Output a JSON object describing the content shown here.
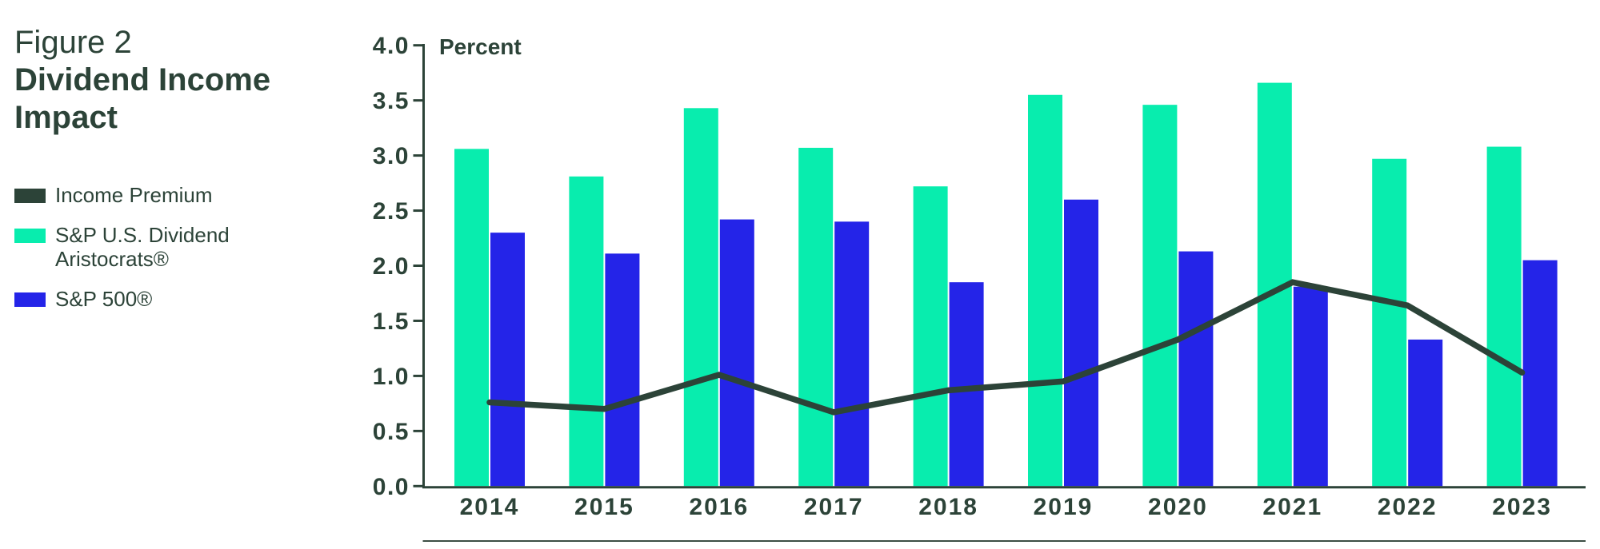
{
  "figure": {
    "label": "Figure 2",
    "title": "Dividend Income Impact"
  },
  "legend": [
    {
      "name": "Income Premium",
      "type": "line",
      "color": "#2C4338"
    },
    {
      "name": "S&P U.S. Dividend Aristocrats®",
      "type": "bar",
      "color": "#08EDAE"
    },
    {
      "name": "S&P 500®",
      "type": "bar",
      "color": "#2424E8"
    }
  ],
  "colors": {
    "text_dark": "#2C4338",
    "mint": "#08EDAE",
    "blue": "#2424E8",
    "line_dark": "#2C4338",
    "separator": "#3C4E44"
  },
  "chart_data": {
    "type": "bar",
    "title": "Dividend Income Impact",
    "ylabel": "Percent",
    "xlabel": "",
    "ylim": [
      0,
      4
    ],
    "ytick_step": 0.5,
    "grid": false,
    "legend_position": "left",
    "categories": [
      "2014",
      "2015",
      "2016",
      "2017",
      "2018",
      "2019",
      "2020",
      "2021",
      "2022",
      "2023"
    ],
    "series": [
      {
        "name": "S&P U.S. Dividend Aristocrats®",
        "type": "bar",
        "color": "#08EDAE",
        "values": [
          3.06,
          2.81,
          3.43,
          3.07,
          2.72,
          3.55,
          3.46,
          3.66,
          2.97,
          3.08
        ]
      },
      {
        "name": "S&P 500®",
        "type": "bar",
        "color": "#2424E8",
        "values": [
          2.3,
          2.11,
          2.42,
          2.4,
          1.85,
          2.6,
          2.13,
          1.81,
          1.33,
          2.05
        ]
      },
      {
        "name": "Income Premium",
        "type": "line",
        "color": "#2C4338",
        "values": [
          0.76,
          0.7,
          1.01,
          0.67,
          0.87,
          0.95,
          1.33,
          1.85,
          1.64,
          1.03
        ]
      }
    ]
  }
}
